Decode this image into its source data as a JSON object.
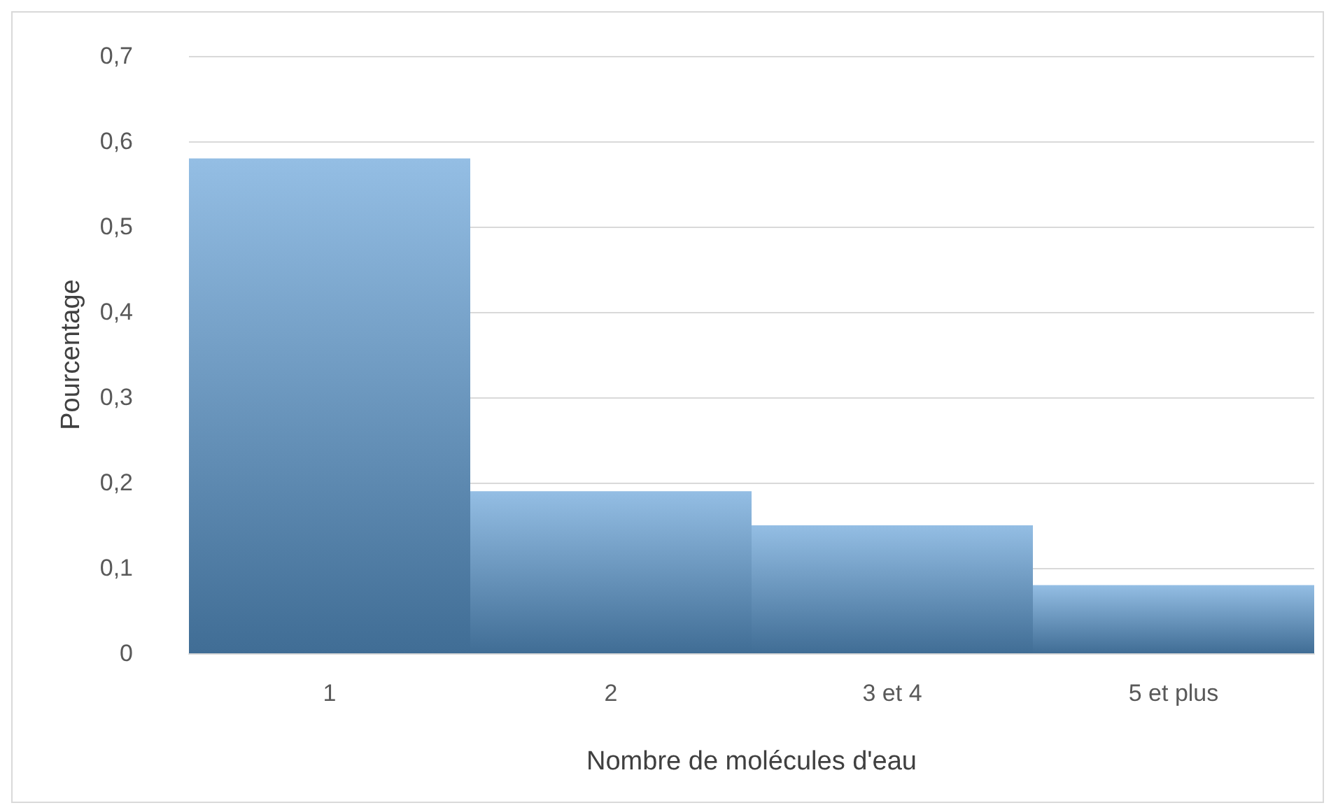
{
  "chart_data": {
    "type": "bar",
    "xlabel": "Nombre de molécules d'eau",
    "ylabel": "Pourcentage",
    "categories": [
      "1",
      "2",
      "3 et 4",
      "5 et plus"
    ],
    "values": [
      0.58,
      0.19,
      0.15,
      0.08
    ],
    "color": "#5b9bd5",
    "ylim": [
      0,
      0.7
    ],
    "yticks": [
      {
        "value": 0,
        "label": "0"
      },
      {
        "value": 0.1,
        "label": "0,1"
      },
      {
        "value": 0.2,
        "label": "0,2"
      },
      {
        "value": 0.3,
        "label": "0,3"
      },
      {
        "value": 0.4,
        "label": "0,4"
      },
      {
        "value": 0.5,
        "label": "0,5"
      },
      {
        "value": 0.6,
        "label": "0,6"
      },
      {
        "value": 0.7,
        "label": "0,7"
      }
    ],
    "grid": "y"
  }
}
